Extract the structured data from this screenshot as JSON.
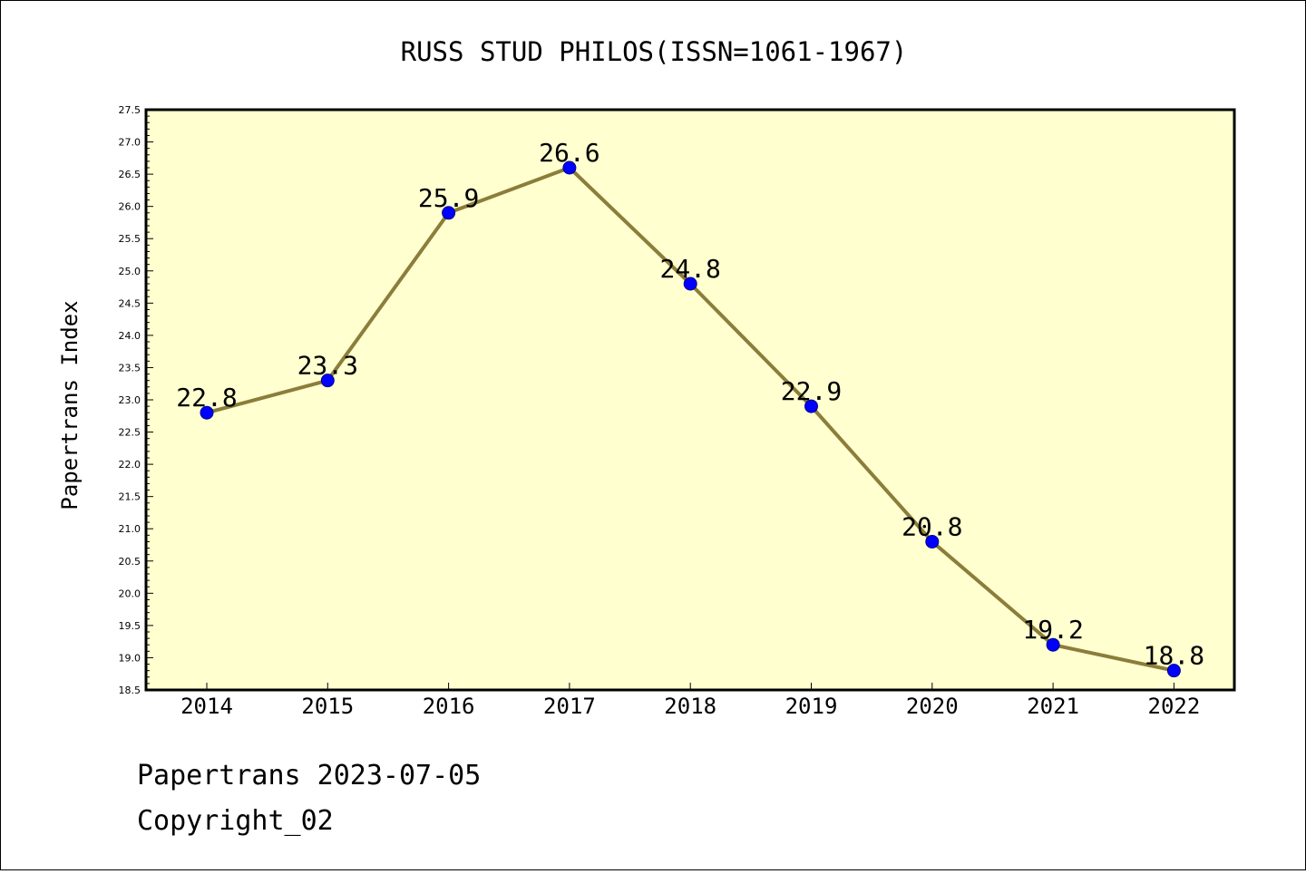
{
  "chart_data": {
    "type": "line",
    "title": "RUSS STUD PHILOS(ISSN=1061-1967)",
    "xlabel": "",
    "ylabel": "Papertrans Index",
    "x": [
      "2014",
      "2015",
      "2016",
      "2017",
      "2018",
      "2019",
      "2020",
      "2021",
      "2022"
    ],
    "series": [
      {
        "values": [
          22.8,
          23.3,
          25.9,
          26.6,
          24.8,
          22.9,
          20.8,
          19.2,
          18.8
        ]
      }
    ],
    "data_labels": [
      "22.8",
      "23.3",
      "25.9",
      "26.6",
      "24.8",
      "22.9",
      "20.8",
      "19.2",
      "18.8"
    ],
    "ylim": [
      18.5,
      27.5
    ],
    "yticks": [
      "18.5",
      "19.0",
      "19.5",
      "20.0",
      "20.5",
      "21.0",
      "21.5",
      "22.0",
      "22.5",
      "23.0",
      "23.5",
      "24.0",
      "24.5",
      "25.0",
      "25.5",
      "26.0",
      "26.5",
      "27.0",
      "27.5"
    ],
    "grid": false,
    "colors": {
      "line": "#8b7d3a",
      "marker": "#0000ff",
      "plot_bg": "#ffffd0"
    }
  },
  "footer": {
    "line1": "Papertrans 2023-07-05",
    "line2": "Copyright_02"
  }
}
